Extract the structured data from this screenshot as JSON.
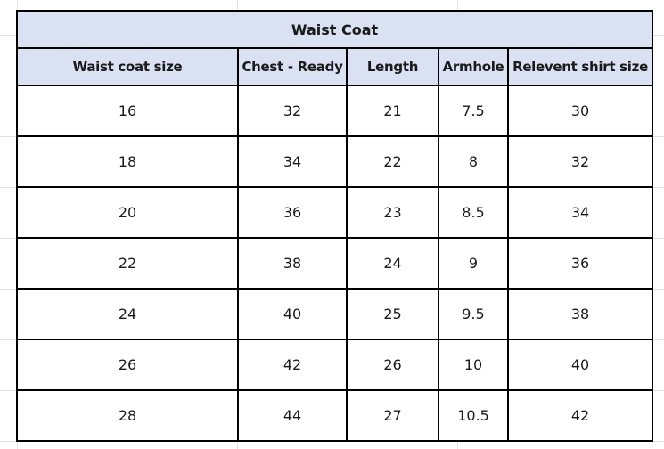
{
  "title": "Waist Coat",
  "headers": [
    "Waist coat size",
    "Chest - Ready",
    "Length",
    "Armhole",
    "Relevent shirt size"
  ],
  "rows": [
    [
      "16",
      "32",
      "21",
      "7.5",
      "30"
    ],
    [
      "18",
      "34",
      "22",
      "8",
      "32"
    ],
    [
      "20",
      "36",
      "23",
      "8.5",
      "34"
    ],
    [
      "22",
      "38",
      "24",
      "9",
      "36"
    ],
    [
      "24",
      "40",
      "25",
      "9.5",
      "38"
    ],
    [
      "26",
      "42",
      "26",
      "10",
      "40"
    ],
    [
      "28",
      "44",
      "27",
      "10.5",
      "42"
    ]
  ]
}
